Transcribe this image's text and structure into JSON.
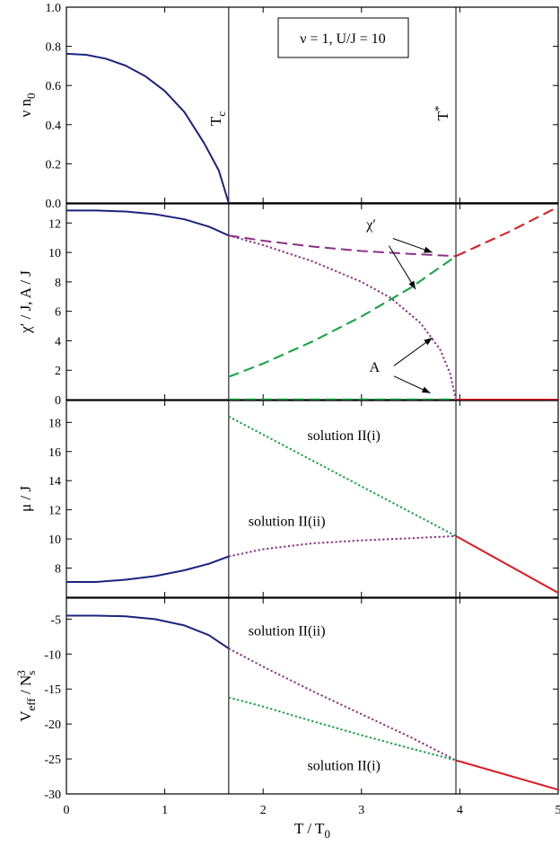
{
  "colors": {
    "blue": "#1a237e",
    "purple": "#8b2f86",
    "green": "#0aa43c",
    "red": "#e0161f"
  },
  "chart_data": {
    "type": "line",
    "x_axis": {
      "label": "T / T",
      "label_sub": "0",
      "range": [
        0,
        5
      ],
      "ticks": [
        0,
        1,
        2,
        3,
        4,
        5
      ],
      "tick_labels": [
        "0",
        "1",
        "2",
        "3",
        "4",
        "5"
      ]
    },
    "vertical_markers": [
      {
        "x": 1.65,
        "label": "T",
        "sub": "c",
        "sup": ""
      },
      {
        "x": 3.96,
        "label": "T",
        "sub": "",
        "sup": "*"
      }
    ],
    "panels": [
      {
        "id": "condensate",
        "ylabel": "ν n",
        "ylabel_sub": "0",
        "ylabel_sup": "",
        "ylabel_tail": "",
        "ylim": [
          0,
          1
        ],
        "yticks": [
          0,
          0.2,
          0.4,
          0.6,
          0.8,
          1.0
        ],
        "ytick_labels": [
          "0.0",
          "0.2",
          "0.4",
          "0.6",
          "0.8",
          "1.0"
        ],
        "legend_box": "ν = 1, U/J = 10",
        "series": [
          {
            "color": "blue",
            "style": "solid",
            "points": [
              [
                0,
                0.762
              ],
              [
                0.2,
                0.757
              ],
              [
                0.4,
                0.737
              ],
              [
                0.6,
                0.702
              ],
              [
                0.8,
                0.648
              ],
              [
                1.0,
                0.572
              ],
              [
                1.2,
                0.464
              ],
              [
                1.4,
                0.306
              ],
              [
                1.55,
                0.165
              ],
              [
                1.65,
                0.0
              ]
            ]
          },
          {
            "color": "black",
            "style": "solid",
            "points": [
              [
                1.65,
                0.0
              ],
              [
                5.0,
                0.0
              ]
            ]
          }
        ]
      },
      {
        "id": "order-params",
        "ylabel": "χ′ / J, A / J",
        "ylabel_sub": "",
        "ylabel_sup": "",
        "ylabel_tail": "",
        "ylim": [
          0,
          13.3
        ],
        "yticks": [
          0,
          2,
          4,
          6,
          8,
          10,
          12
        ],
        "ytick_labels": [
          "0",
          "2",
          "4",
          "6",
          "8",
          "10",
          "12"
        ],
        "series": [
          {
            "color": "blue",
            "style": "solid",
            "points": [
              [
                0,
                12.85
              ],
              [
                0.3,
                12.85
              ],
              [
                0.6,
                12.78
              ],
              [
                0.9,
                12.6
              ],
              [
                1.2,
                12.25
              ],
              [
                1.45,
                11.75
              ],
              [
                1.65,
                11.15
              ]
            ]
          },
          {
            "color": "purple",
            "style": "dashed",
            "points": [
              [
                1.65,
                11.15
              ],
              [
                2.0,
                10.8
              ],
              [
                2.5,
                10.4
              ],
              [
                3.0,
                10.1
              ],
              [
                3.5,
                9.9
              ],
              [
                3.96,
                9.75
              ]
            ]
          },
          {
            "color": "purple",
            "style": "dotted",
            "points": [
              [
                1.65,
                11.15
              ],
              [
                2.0,
                10.5
              ],
              [
                2.5,
                9.4
              ],
              [
                3.0,
                8.0
              ],
              [
                3.3,
                6.9
              ],
              [
                3.6,
                5.2
              ],
              [
                3.8,
                3.4
              ],
              [
                3.9,
                1.8
              ],
              [
                3.96,
                0.0
              ]
            ]
          },
          {
            "color": "green",
            "style": "dashed",
            "points": [
              [
                1.65,
                1.55
              ],
              [
                2.0,
                2.45
              ],
              [
                2.5,
                3.95
              ],
              [
                3.0,
                5.65
              ],
              [
                3.5,
                7.6
              ],
              [
                3.96,
                9.75
              ]
            ]
          },
          {
            "color": "green",
            "style": "dashed",
            "points": [
              [
                1.65,
                0.02
              ],
              [
                3.96,
                0.02
              ]
            ]
          },
          {
            "color": "red",
            "style": "dashed",
            "points": [
              [
                3.96,
                9.75
              ],
              [
                4.5,
                11.4
              ],
              [
                5.0,
                13.1
              ]
            ]
          },
          {
            "color": "red",
            "style": "solid",
            "points": [
              [
                3.96,
                0.0
              ],
              [
                5.0,
                0.0
              ]
            ]
          }
        ],
        "annotations": [
          {
            "text": "χ′",
            "x": 3.05,
            "y": 11.6
          },
          {
            "text": "A",
            "x": 3.08,
            "y": 1.9
          }
        ]
      },
      {
        "id": "chemical-potential",
        "ylabel": "μ / J",
        "ylabel_sub": "",
        "ylabel_sup": "",
        "ylabel_tail": "",
        "ylim": [
          6,
          19.5
        ],
        "yticks": [
          8,
          10,
          12,
          14,
          16,
          18
        ],
        "ytick_labels": [
          "8",
          "10",
          "12",
          "14",
          "16",
          "18"
        ],
        "series": [
          {
            "color": "blue",
            "style": "solid",
            "points": [
              [
                0,
                7.05
              ],
              [
                0.3,
                7.05
              ],
              [
                0.6,
                7.2
              ],
              [
                0.9,
                7.45
              ],
              [
                1.2,
                7.85
              ],
              [
                1.45,
                8.3
              ],
              [
                1.65,
                8.8
              ]
            ]
          },
          {
            "color": "green",
            "style": "dotted",
            "points": [
              [
                1.65,
                18.4
              ],
              [
                3.96,
                10.2
              ]
            ]
          },
          {
            "color": "purple",
            "style": "dotted",
            "points": [
              [
                1.65,
                8.8
              ],
              [
                2.0,
                9.3
              ],
              [
                2.5,
                9.7
              ],
              [
                3.0,
                9.9
              ],
              [
                3.5,
                10.05
              ],
              [
                3.96,
                10.2
              ]
            ]
          },
          {
            "color": "red",
            "style": "solid",
            "points": [
              [
                3.96,
                10.2
              ],
              [
                5.0,
                6.3
              ]
            ]
          }
        ],
        "annotations": [
          {
            "text": "solution II(i)",
            "x": 2.45,
            "y": 16.8
          },
          {
            "text": "solution II(ii)",
            "x": 1.85,
            "y": 10.9
          }
        ]
      },
      {
        "id": "effective-potential",
        "ylabel": "V",
        "ylabel_sub": "eff",
        "ylabel_sup": "3",
        "ylabel_tail": " / N",
        "ylabel_tail_sub": "s",
        "ylim": [
          -30,
          -2
        ],
        "yticks": [
          -30,
          -25,
          -20,
          -15,
          -10,
          -5
        ],
        "ytick_labels": [
          "-30",
          "-25",
          "-20",
          "-15",
          "-10",
          "-5"
        ],
        "series": [
          {
            "color": "blue",
            "style": "solid",
            "points": [
              [
                0,
                -4.5
              ],
              [
                0.3,
                -4.5
              ],
              [
                0.6,
                -4.6
              ],
              [
                0.9,
                -5.0
              ],
              [
                1.2,
                -5.9
              ],
              [
                1.45,
                -7.3
              ],
              [
                1.65,
                -9.2
              ]
            ]
          },
          {
            "color": "purple",
            "style": "dotted",
            "points": [
              [
                1.65,
                -9.2
              ],
              [
                2.0,
                -11.8
              ],
              [
                2.5,
                -15.3
              ],
              [
                3.0,
                -18.6
              ],
              [
                3.5,
                -21.9
              ],
              [
                3.96,
                -25.2
              ]
            ]
          },
          {
            "color": "green",
            "style": "dotted",
            "points": [
              [
                1.65,
                -16.2
              ],
              [
                2.0,
                -17.5
              ],
              [
                2.5,
                -19.6
              ],
              [
                3.0,
                -21.6
              ],
              [
                3.5,
                -23.5
              ],
              [
                3.96,
                -25.2
              ]
            ]
          },
          {
            "color": "red",
            "style": "solid",
            "points": [
              [
                3.96,
                -25.2
              ],
              [
                5.0,
                -29.4
              ]
            ]
          }
        ],
        "annotations": [
          {
            "text": "solution II(ii)",
            "x": 1.85,
            "y": -7.3
          },
          {
            "text": "solution II(i)",
            "x": 2.45,
            "y": -26.6
          }
        ]
      }
    ]
  }
}
